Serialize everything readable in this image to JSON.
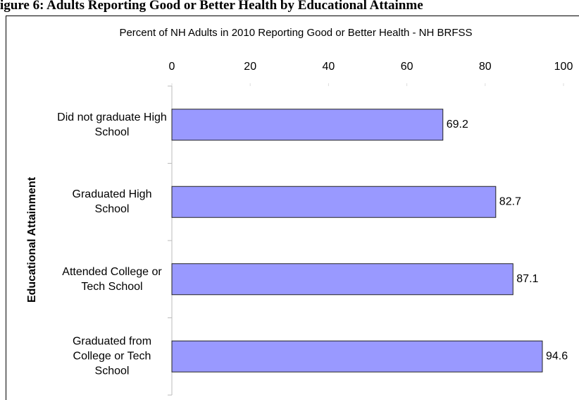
{
  "heading": "igure 6: Adults Reporting Good or Better Health by Educational Attainme",
  "chart_data": {
    "type": "bar",
    "orientation": "horizontal",
    "title": "Percent of NH Adults in 2010 Reporting Good or Better Health - NH BRFSS",
    "y_label": "Educational Attainment",
    "categories": [
      "Did not graduate High School",
      "Graduated High School",
      "Attended College or Tech School",
      "Graduated from College or Tech School"
    ],
    "values": [
      69.2,
      82.7,
      87.1,
      94.6
    ],
    "color": "#9999ff",
    "xlim": [
      0,
      100
    ],
    "xticks": [
      0,
      20,
      40,
      60,
      80,
      100
    ],
    "grid": false
  }
}
